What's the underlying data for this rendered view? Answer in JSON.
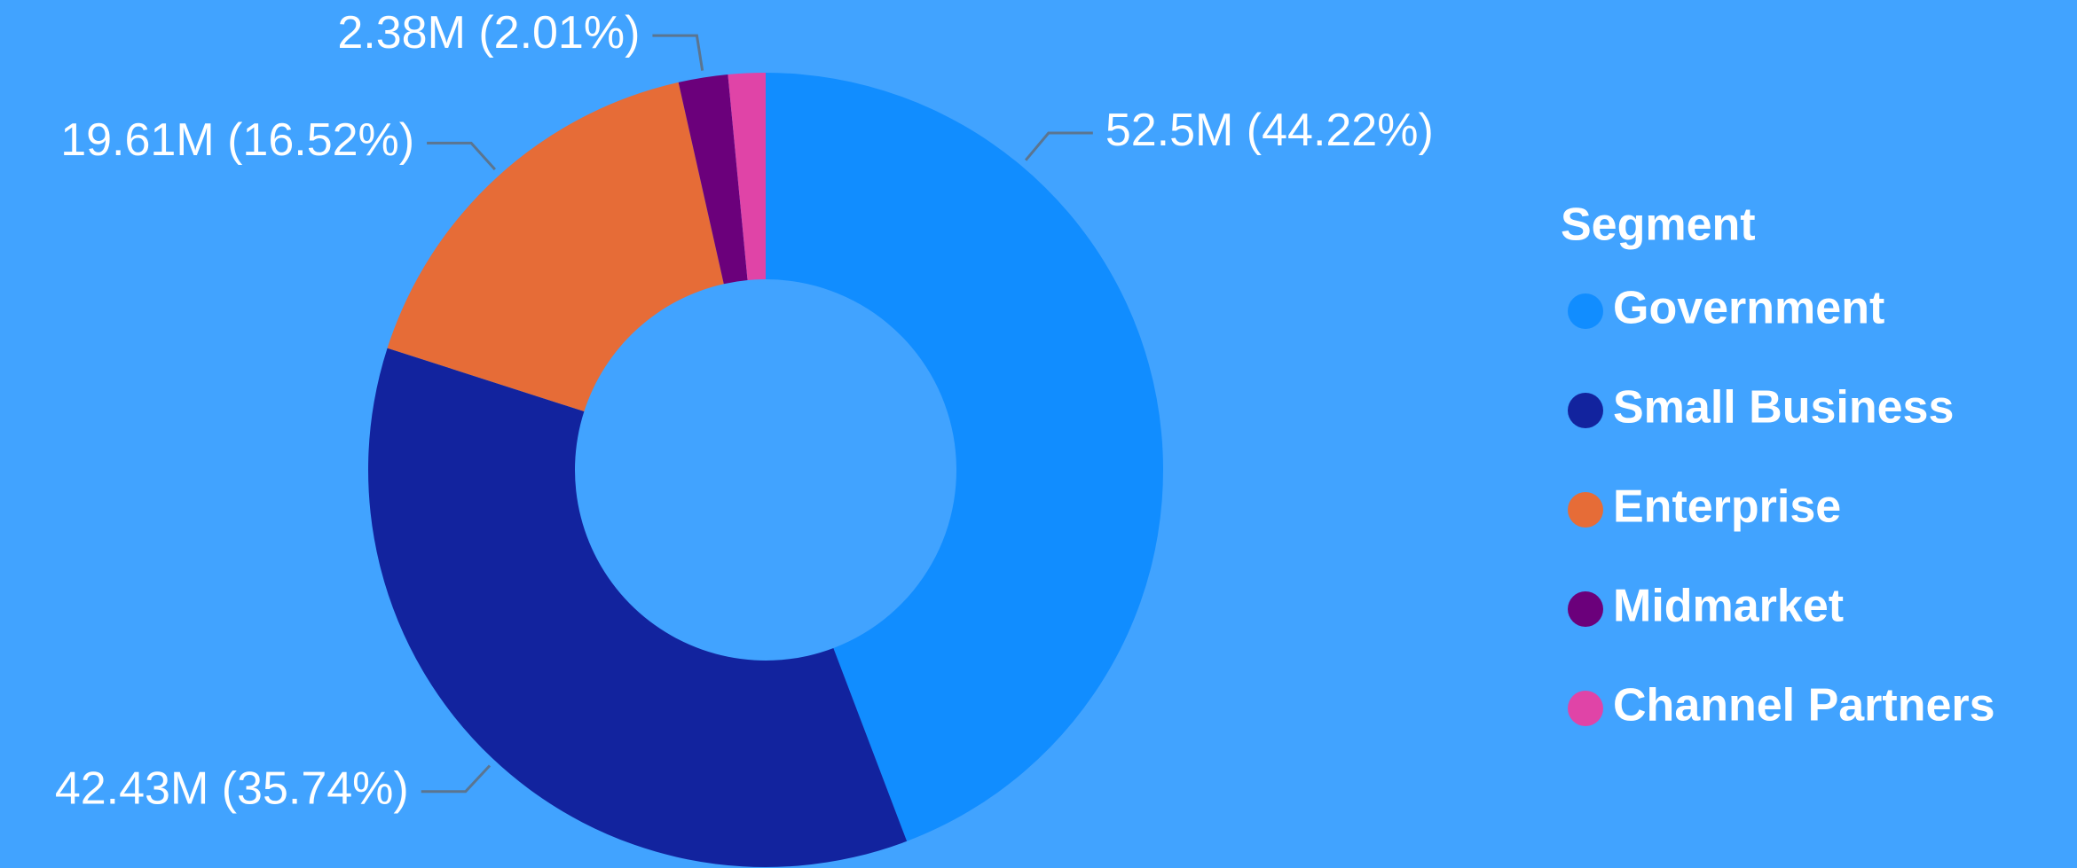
{
  "chart_data": {
    "type": "donut",
    "legend_title": "Segment",
    "categories": [
      "Government",
      "Small Business",
      "Enterprise",
      "Midmarket",
      "Channel Partners"
    ],
    "values": [
      52.5,
      42.43,
      19.61,
      2.38,
      1.8
    ],
    "value_labels": [
      "52.5M (44.22%)",
      "42.43M (35.74%)",
      "19.61M (16.52%)",
      "2.38M (2.01%)",
      null
    ],
    "colors": [
      "#118dff",
      "#12239e",
      "#e66c37",
      "#6b007b",
      "#e044a7"
    ],
    "legend": "right"
  }
}
